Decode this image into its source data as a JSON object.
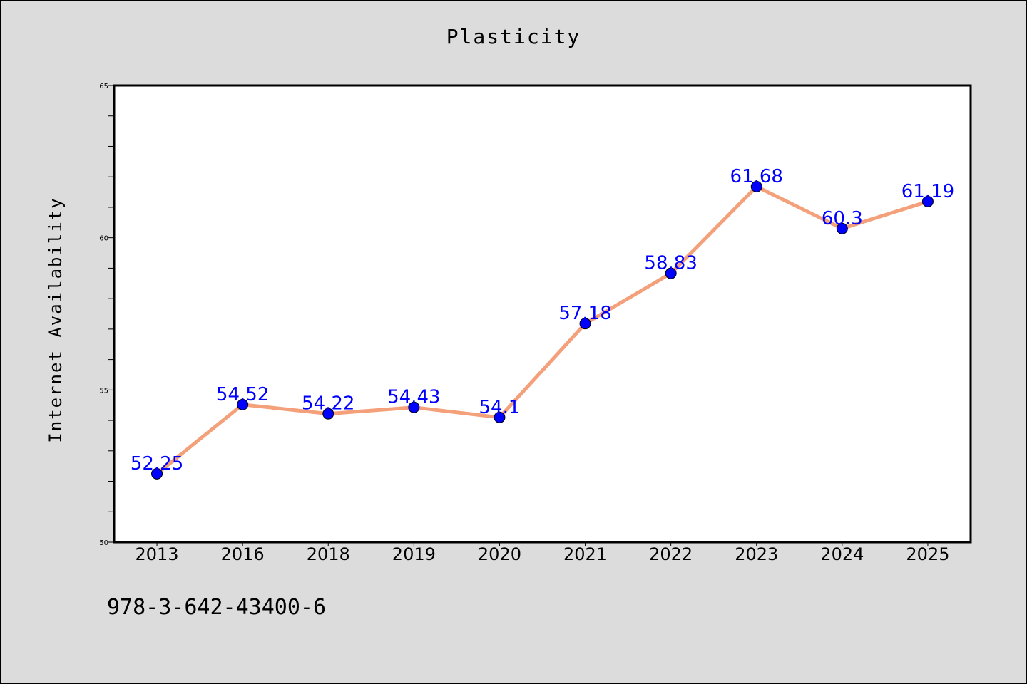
{
  "title": "Plasticity",
  "footer_text": "978-3-642-43400-6",
  "chart_data": {
    "type": "line",
    "title": "Plasticity",
    "xlabel": "",
    "ylabel": "Internet Availability",
    "categories": [
      "2013",
      "2016",
      "2018",
      "2019",
      "2020",
      "2021",
      "2022",
      "2023",
      "2024",
      "2025"
    ],
    "series": [
      {
        "values": [
          52.25,
          54.52,
          54.22,
          54.43,
          54.1,
          57.18,
          58.83,
          61.68,
          60.3,
          61.19
        ],
        "data_labels": [
          "52.25",
          "54.52",
          "54.22",
          "54.43",
          "54.1",
          "57.18",
          "58.83",
          "61.68",
          "60.3",
          "61.19"
        ],
        "line_color": "#f4a07a",
        "marker_color": "#0000ff"
      }
    ],
    "ylim": [
      50,
      65
    ],
    "yticks": [
      50,
      55,
      60,
      65
    ],
    "ytick_labels": [
      "50",
      "55",
      "60",
      "65"
    ],
    "y_minor_step": 1,
    "label_color": "#0000ff",
    "grid": false,
    "legend": "none",
    "background": "#dcdcdc",
    "plot_background": "#ffffff"
  }
}
